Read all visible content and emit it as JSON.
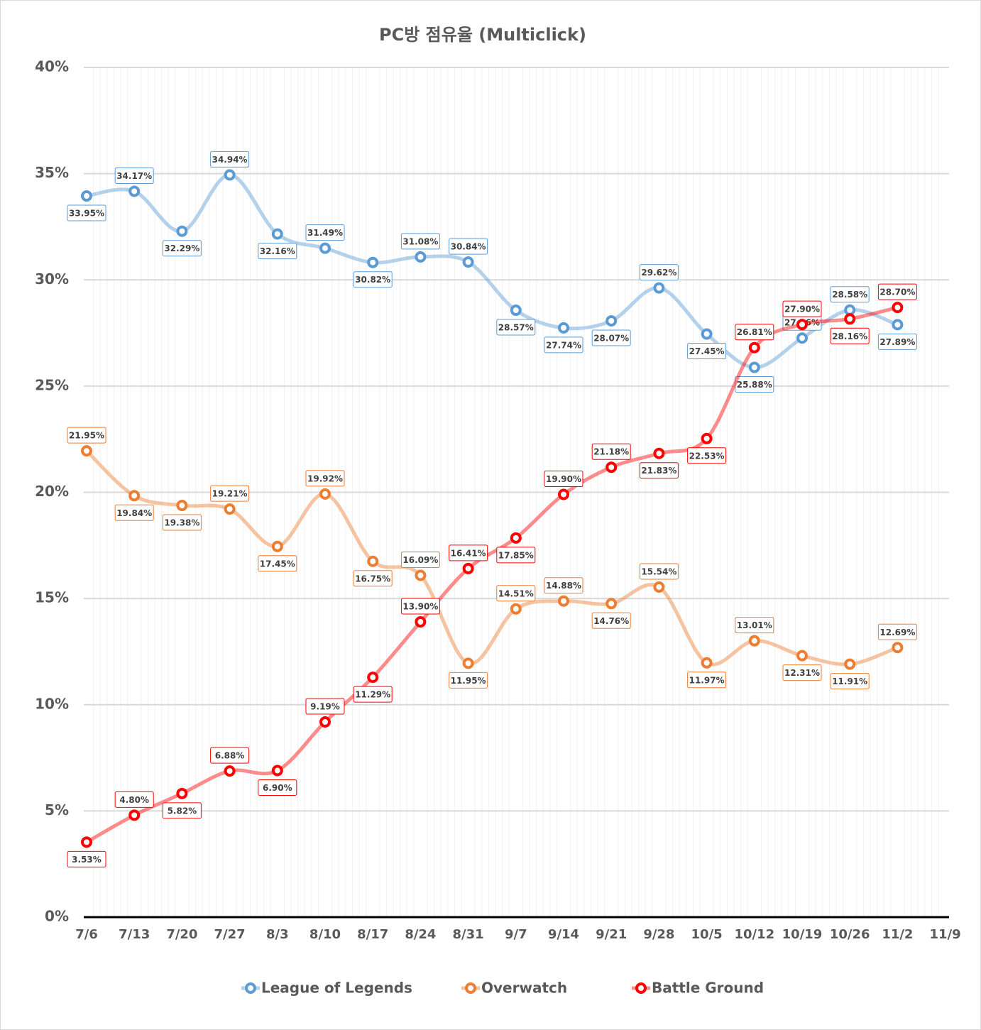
{
  "chart_data": {
    "type": "line",
    "title": "PC방 점유율 (Multiclick)",
    "categories": [
      "7/6",
      "7/13",
      "7/20",
      "7/27",
      "8/3",
      "8/10",
      "8/17",
      "8/24",
      "8/31",
      "9/7",
      "9/14",
      "9/21",
      "9/28",
      "10/5",
      "10/12",
      "10/19",
      "10/26",
      "11/2",
      "11/9"
    ],
    "ylim": [
      0,
      40
    ],
    "yticks": [
      {
        "value": 0,
        "label": "0%"
      },
      {
        "value": 5,
        "label": "5%"
      },
      {
        "value": 10,
        "label": "10%"
      },
      {
        "value": 15,
        "label": "15%"
      },
      {
        "value": 20,
        "label": "20%"
      },
      {
        "value": 25,
        "label": "25%"
      },
      {
        "value": 30,
        "label": "30%"
      },
      {
        "value": 35,
        "label": "35%"
      },
      {
        "value": 40,
        "label": "40%"
      }
    ],
    "grid": true,
    "legend": "bottom",
    "series": [
      {
        "name": "League of Legends",
        "color": "#5b9bd5",
        "values": [
          33.95,
          34.17,
          32.29,
          34.94,
          32.16,
          31.49,
          30.82,
          31.08,
          30.84,
          28.57,
          27.74,
          28.07,
          29.62,
          27.45,
          25.88,
          27.26,
          28.58,
          27.89,
          null
        ],
        "value_labels": [
          "33.95%",
          "34.17%",
          "32.29%",
          "34.94%",
          "32.16%",
          "31.49%",
          "30.82%",
          "31.08%",
          "30.84%",
          "28.57%",
          "27.74%",
          "28.07%",
          "29.62%",
          "27.45%",
          "25.88%",
          "27.26%",
          "28.58%",
          "27.89%",
          null
        ]
      },
      {
        "name": "Overwatch",
        "color": "#ed7d31",
        "values": [
          21.95,
          19.84,
          19.38,
          19.21,
          17.45,
          19.92,
          16.75,
          16.09,
          11.95,
          14.51,
          14.88,
          14.76,
          15.54,
          11.97,
          13.01,
          12.31,
          11.91,
          12.69,
          null
        ],
        "value_labels": [
          "21.95%",
          "19.84%",
          "19.38%",
          "19.21%",
          "17.45%",
          "19.92%",
          "16.75%",
          "16.09%",
          "11.95%",
          "14.51%",
          "14.88%",
          "14.76%",
          "15.54%",
          "11.97%",
          "13.01%",
          "12.31%",
          "11.91%",
          "12.69%",
          null
        ]
      },
      {
        "name": "Battle Ground",
        "color": "#ff0000",
        "values": [
          3.53,
          4.8,
          5.82,
          6.88,
          6.9,
          9.19,
          11.29,
          13.9,
          16.41,
          17.85,
          19.9,
          21.18,
          21.83,
          22.53,
          26.81,
          27.9,
          28.16,
          28.7,
          null
        ],
        "value_labels": [
          "3.53%",
          "4.80%",
          "5.82%",
          "6.88%",
          "6.90%",
          "9.19%",
          "11.29%",
          "13.90%",
          "16.41%",
          "17.85%",
          "19.90%",
          "21.18%",
          "21.83%",
          "22.53%",
          "26.81%",
          "27.90%",
          "28.16%",
          "28.70%",
          null
        ]
      }
    ]
  }
}
